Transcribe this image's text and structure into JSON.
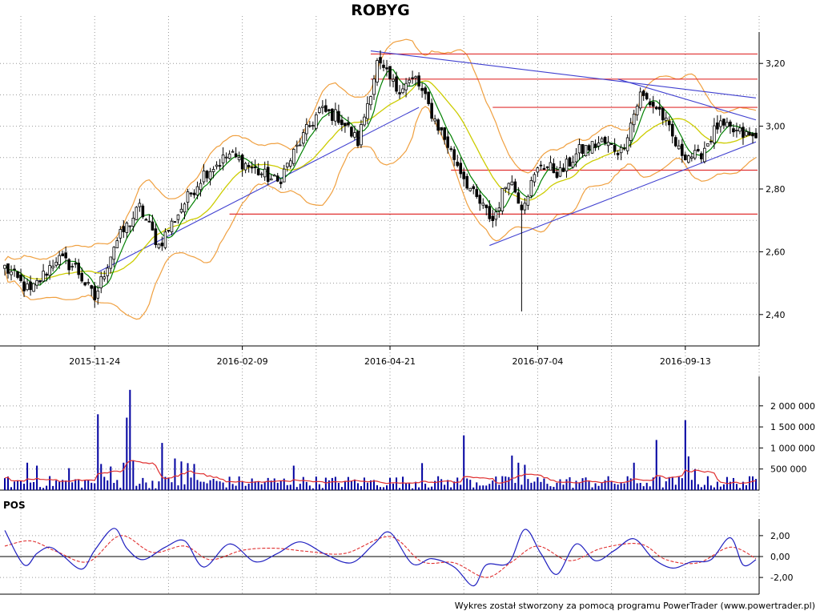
{
  "title": "ROBYG",
  "footer": "Wykres został stworzony za pomocą programu PowerTrader (www.powertrader.pl)",
  "colors": {
    "background": "#ffffff",
    "candle_up": "#ffffff",
    "candle_down": "#000000",
    "candle_wick": "#000000",
    "moving_average_short": "#008000",
    "moving_average_long": "#cccc00",
    "bollinger_bands": "#f0a040",
    "support_resistance": "#e03030",
    "trend_lines": "#4040d0",
    "volume_bars": "#0000a0",
    "volume_average": "#e03030",
    "pos_line": "#2020c0",
    "pos_signal": "#e03030",
    "grid": "#999999"
  },
  "chart_data": [
    {
      "type": "candlestick",
      "name": "price",
      "ylim": [
        2.3,
        3.3
      ],
      "y_ticks": [
        "2,40",
        "2,60",
        "2,80",
        "3,00",
        "3,20"
      ],
      "x_ticks": [
        "2015-11-24",
        "2016-02-09",
        "2016-04-21",
        "2016-07-04",
        "2016-09-13"
      ],
      "grid": true,
      "anchors": [
        {
          "d": 0,
          "p": 2.55
        },
        {
          "d": 8,
          "p": 2.47
        },
        {
          "d": 16,
          "p": 2.58
        },
        {
          "d": 22,
          "p": 2.55
        },
        {
          "d": 28,
          "p": 2.45
        },
        {
          "d": 34,
          "p": 2.62
        },
        {
          "d": 42,
          "p": 2.74
        },
        {
          "d": 48,
          "p": 2.62
        },
        {
          "d": 55,
          "p": 2.74
        },
        {
          "d": 62,
          "p": 2.85
        },
        {
          "d": 70,
          "p": 2.91
        },
        {
          "d": 78,
          "p": 2.86
        },
        {
          "d": 85,
          "p": 2.82
        },
        {
          "d": 92,
          "p": 2.95
        },
        {
          "d": 98,
          "p": 3.05
        },
        {
          "d": 104,
          "p": 3.03
        },
        {
          "d": 110,
          "p": 2.95
        },
        {
          "d": 116,
          "p": 3.2
        },
        {
          "d": 122,
          "p": 3.12
        },
        {
          "d": 128,
          "p": 3.15
        },
        {
          "d": 134,
          "p": 3.02
        },
        {
          "d": 140,
          "p": 2.9
        },
        {
          "d": 146,
          "p": 2.78
        },
        {
          "d": 152,
          "p": 2.7
        },
        {
          "d": 157,
          "p": 2.84
        },
        {
          "d": 161,
          "p": 2.75
        },
        {
          "d": 167,
          "p": 2.88
        },
        {
          "d": 173,
          "p": 2.85
        },
        {
          "d": 179,
          "p": 2.92
        },
        {
          "d": 186,
          "p": 2.95
        },
        {
          "d": 192,
          "p": 2.92
        },
        {
          "d": 198,
          "p": 3.1
        },
        {
          "d": 204,
          "p": 3.05
        },
        {
          "d": 210,
          "p": 2.92
        },
        {
          "d": 216,
          "p": 2.9
        },
        {
          "d": 222,
          "p": 3.0
        },
        {
          "d": 228,
          "p": 2.98
        },
        {
          "d": 234,
          "p": 2.96
        }
      ],
      "notable_low": 2.41,
      "horizontal_levels": [
        3.23,
        3.15,
        3.06,
        2.86,
        2.72
      ],
      "trend_lines": [
        {
          "from": [
            28,
            2.53
          ],
          "to": [
            129,
            3.06
          ]
        },
        {
          "from": [
            114,
            3.24
          ],
          "to": [
            234,
            3.09
          ]
        },
        {
          "from": [
            191,
            3.15
          ],
          "to": [
            234,
            3.02
          ]
        },
        {
          "from": [
            151,
            2.62
          ],
          "to": [
            234,
            2.95
          ]
        }
      ]
    },
    {
      "type": "bar",
      "name": "volume",
      "ylim": [
        0,
        2700000
      ],
      "y_ticks": [
        "500 000",
        "1 000 000",
        "1 500 000",
        "2 000 000"
      ],
      "spikes": [
        {
          "d": 7,
          "v": 650000
        },
        {
          "d": 10,
          "v": 580000
        },
        {
          "d": 20,
          "v": 520000
        },
        {
          "d": 29,
          "v": 1800000
        },
        {
          "d": 30,
          "v": 620000
        },
        {
          "d": 33,
          "v": 560000
        },
        {
          "d": 37,
          "v": 650000
        },
        {
          "d": 38,
          "v": 1720000
        },
        {
          "d": 39,
          "v": 2380000
        },
        {
          "d": 40,
          "v": 700000
        },
        {
          "d": 49,
          "v": 1120000
        },
        {
          "d": 53,
          "v": 750000
        },
        {
          "d": 55,
          "v": 680000
        },
        {
          "d": 57,
          "v": 640000
        },
        {
          "d": 59,
          "v": 620000
        },
        {
          "d": 90,
          "v": 580000
        },
        {
          "d": 130,
          "v": 640000
        },
        {
          "d": 143,
          "v": 1300000
        },
        {
          "d": 158,
          "v": 820000
        },
        {
          "d": 160,
          "v": 650000
        },
        {
          "d": 162,
          "v": 600000
        },
        {
          "d": 196,
          "v": 650000
        },
        {
          "d": 203,
          "v": 1190000
        },
        {
          "d": 212,
          "v": 1660000
        },
        {
          "d": 213,
          "v": 800000
        },
        {
          "d": 215,
          "v": 500000
        }
      ]
    },
    {
      "type": "line",
      "name": "POS",
      "ylim": [
        -3.6,
        3.6
      ],
      "y_ticks": [
        "-2,00",
        "0,00",
        "2,00"
      ],
      "series": [
        {
          "name": "POS",
          "anchors": [
            {
              "d": 0,
              "v": 2.5
            },
            {
              "d": 6,
              "v": -0.8
            },
            {
              "d": 10,
              "v": 0.3
            },
            {
              "d": 14,
              "v": 0.9
            },
            {
              "d": 18,
              "v": 0.1
            },
            {
              "d": 24,
              "v": -1.2
            },
            {
              "d": 28,
              "v": 0.6
            },
            {
              "d": 34,
              "v": 2.7
            },
            {
              "d": 38,
              "v": 0.8
            },
            {
              "d": 43,
              "v": -0.3
            },
            {
              "d": 50,
              "v": 0.9
            },
            {
              "d": 56,
              "v": 1.5
            },
            {
              "d": 62,
              "v": -1.0
            },
            {
              "d": 70,
              "v": 1.2
            },
            {
              "d": 78,
              "v": -0.5
            },
            {
              "d": 85,
              "v": 0.3
            },
            {
              "d": 92,
              "v": 1.4
            },
            {
              "d": 100,
              "v": 0.2
            },
            {
              "d": 108,
              "v": -0.6
            },
            {
              "d": 115,
              "v": 1.2
            },
            {
              "d": 120,
              "v": 2.3
            },
            {
              "d": 127,
              "v": -0.7
            },
            {
              "d": 133,
              "v": -0.2
            },
            {
              "d": 140,
              "v": -1.0
            },
            {
              "d": 146,
              "v": -2.8
            },
            {
              "d": 150,
              "v": -0.8
            },
            {
              "d": 157,
              "v": -0.6
            },
            {
              "d": 162,
              "v": 2.6
            },
            {
              "d": 167,
              "v": 0.3
            },
            {
              "d": 172,
              "v": -1.7
            },
            {
              "d": 178,
              "v": 1.2
            },
            {
              "d": 184,
              "v": -0.4
            },
            {
              "d": 190,
              "v": 0.6
            },
            {
              "d": 196,
              "v": 1.7
            },
            {
              "d": 202,
              "v": -0.2
            },
            {
              "d": 208,
              "v": -1.1
            },
            {
              "d": 214,
              "v": -0.5
            },
            {
              "d": 220,
              "v": -0.3
            },
            {
              "d": 226,
              "v": 1.8
            },
            {
              "d": 230,
              "v": -0.8
            },
            {
              "d": 234,
              "v": -0.3
            }
          ]
        },
        {
          "name": "signal",
          "anchors": [
            {
              "d": 0,
              "v": 1.0
            },
            {
              "d": 8,
              "v": 1.5
            },
            {
              "d": 16,
              "v": 0.5
            },
            {
              "d": 26,
              "v": -0.5
            },
            {
              "d": 36,
              "v": 2.0
            },
            {
              "d": 46,
              "v": 0.4
            },
            {
              "d": 56,
              "v": 1.0
            },
            {
              "d": 64,
              "v": -0.3
            },
            {
              "d": 74,
              "v": 0.6
            },
            {
              "d": 84,
              "v": 0.8
            },
            {
              "d": 94,
              "v": 0.5
            },
            {
              "d": 106,
              "v": 0.3
            },
            {
              "d": 120,
              "v": 1.9
            },
            {
              "d": 130,
              "v": -0.5
            },
            {
              "d": 140,
              "v": -0.6
            },
            {
              "d": 150,
              "v": -2.0
            },
            {
              "d": 158,
              "v": -0.5
            },
            {
              "d": 166,
              "v": 1.0
            },
            {
              "d": 176,
              "v": -0.4
            },
            {
              "d": 186,
              "v": 0.8
            },
            {
              "d": 198,
              "v": 1.2
            },
            {
              "d": 206,
              "v": -0.3
            },
            {
              "d": 216,
              "v": -0.6
            },
            {
              "d": 226,
              "v": 0.9
            },
            {
              "d": 234,
              "v": -0.2
            }
          ]
        }
      ]
    }
  ]
}
